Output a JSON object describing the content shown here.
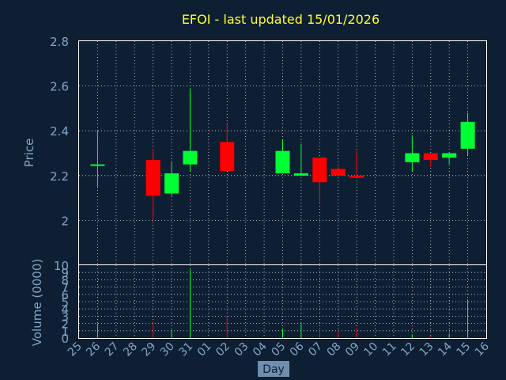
{
  "chart_data": {
    "type": "candlestick",
    "title": "EFOI - last updated 15/01/2026",
    "xlabel": "Day",
    "ylabel": "Price",
    "volume_ylabel": "Volume (0000)",
    "ylim": [
      1.8,
      2.8
    ],
    "volume_ylim": [
      0,
      10
    ],
    "price_ticks": [
      "2",
      "2.2",
      "2.4",
      "2.6",
      "2.8"
    ],
    "volume_ticks": [
      "0",
      "1",
      "2",
      "3",
      "4",
      "5",
      "6",
      "7",
      "8",
      "9",
      "10"
    ],
    "categories": [
      "25",
      "26",
      "27",
      "28",
      "29",
      "30",
      "31",
      "01",
      "02",
      "03",
      "04",
      "05",
      "06",
      "07",
      "08",
      "09",
      "10",
      "11",
      "12",
      "13",
      "14",
      "15",
      "16"
    ],
    "grid": true,
    "colors": {
      "up": "#00ff33",
      "down": "#ff0000",
      "title": "#ffff33",
      "axis": "#7fa6c8",
      "background": "#0f1f33"
    },
    "candles": [
      {
        "day": "26",
        "open": 2.25,
        "high": 2.4,
        "low": 2.15,
        "close": 2.25,
        "volume": 2.0
      },
      {
        "day": "29",
        "open": 2.27,
        "high": 2.32,
        "low": 2.0,
        "close": 2.11,
        "volume": 2.2
      },
      {
        "day": "30",
        "open": 2.12,
        "high": 2.26,
        "low": 2.11,
        "close": 2.21,
        "volume": 1.1
      },
      {
        "day": "31",
        "open": 2.25,
        "high": 2.59,
        "low": 2.22,
        "close": 2.31,
        "volume": 9.5
      },
      {
        "day": "02",
        "open": 2.35,
        "high": 2.43,
        "low": 2.22,
        "close": 2.22,
        "volume": 3.0
      },
      {
        "day": "05",
        "open": 2.21,
        "high": 2.36,
        "low": 2.21,
        "close": 2.31,
        "volume": 1.3
      },
      {
        "day": "06",
        "open": 2.2,
        "high": 2.34,
        "low": 2.2,
        "close": 2.21,
        "volume": 2.0
      },
      {
        "day": "07",
        "open": 2.28,
        "high": 2.28,
        "low": 2.08,
        "close": 2.17,
        "volume": 1.0
      },
      {
        "day": "08",
        "open": 2.23,
        "high": 2.24,
        "low": 2.2,
        "close": 2.2,
        "volume": 0.9
      },
      {
        "day": "09",
        "open": 2.2,
        "high": 2.31,
        "low": 2.19,
        "close": 2.19,
        "volume": 1.3
      },
      {
        "day": "12",
        "open": 2.26,
        "high": 2.38,
        "low": 2.22,
        "close": 2.3,
        "volume": 0.5
      },
      {
        "day": "13",
        "open": 2.3,
        "high": 2.3,
        "low": 2.24,
        "close": 2.27,
        "volume": 0.3
      },
      {
        "day": "14",
        "open": 2.28,
        "high": 2.3,
        "low": 2.25,
        "close": 2.3,
        "volume": 0.6
      },
      {
        "day": "15",
        "open": 2.32,
        "high": 2.48,
        "low": 2.29,
        "close": 2.44,
        "volume": 5.3
      }
    ]
  }
}
